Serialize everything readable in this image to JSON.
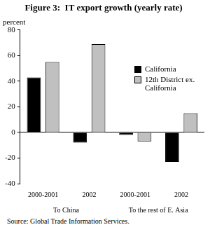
{
  "chart_data": {
    "type": "bar",
    "title": "Figure 3:  IT export growth (yearly rate)",
    "y_label": "percent",
    "categories": [
      "2000-2001",
      "2002",
      "2000-2001",
      "2002"
    ],
    "groups": [
      "To China",
      "To the rest of E. Asia"
    ],
    "series": [
      {
        "name": "California",
        "color": "#000000",
        "values": [
          43,
          -8,
          -2,
          -23
        ]
      },
      {
        "name": "12th District ex. California",
        "color": "#c0c0c0",
        "values": [
          55,
          69,
          -7,
          15
        ]
      }
    ],
    "ylim": [
      -40,
      80
    ],
    "yticks": [
      -40,
      -20,
      0,
      20,
      40,
      60,
      80
    ],
    "grid": false,
    "legend": "upper right",
    "source": "Source: Global Trade Information Services."
  }
}
